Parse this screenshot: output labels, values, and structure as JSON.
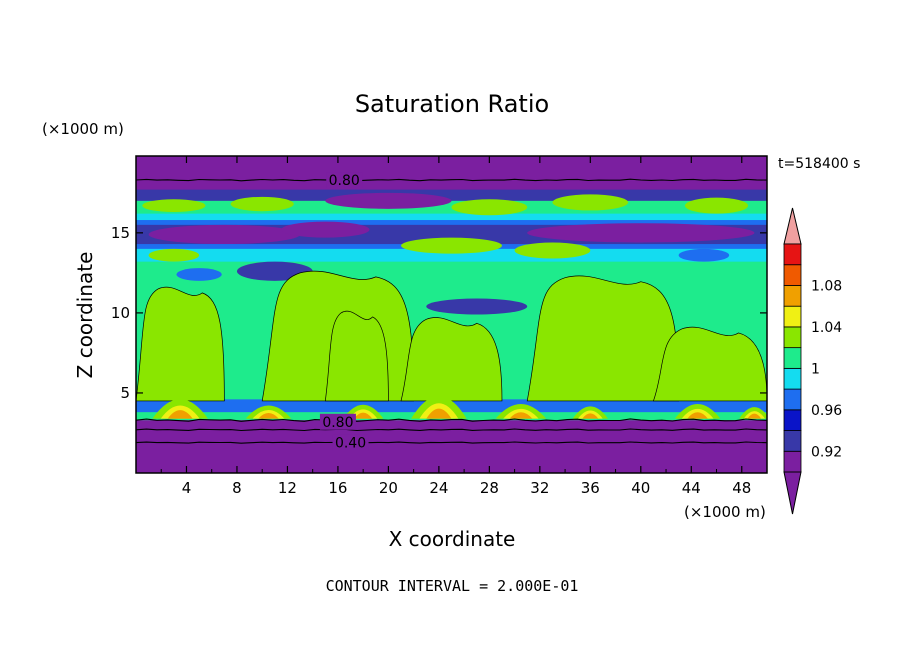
{
  "chart_data": {
    "type": "heatmap",
    "title": "Saturation Ratio",
    "xlabel": "X coordinate",
    "ylabel": "Z coordinate",
    "x_unit": "(×1000 m)",
    "y_unit": "(×1000 m)",
    "time_label": "t=518400 s",
    "footer": "CONTOUR INTERVAL = 2.000E-01",
    "xlim": [
      0,
      50
    ],
    "ylim": [
      0,
      19.8
    ],
    "x_ticks": [
      "4",
      "8",
      "12",
      "16",
      "20",
      "24",
      "28",
      "32",
      "36",
      "40",
      "44",
      "48"
    ],
    "y_ticks": [
      "5",
      "10",
      "15"
    ],
    "colorbar": {
      "labels": [
        "0.92",
        "0.96",
        "1",
        "1.04",
        "1.08"
      ],
      "levels": [
        0.9,
        0.92,
        0.94,
        0.96,
        0.98,
        1.0,
        1.02,
        1.04,
        1.06,
        1.08,
        1.1
      ],
      "colors": [
        "#7b1fa0",
        "#3838a8",
        "#0a14c8",
        "#1e6ef0",
        "#14dcf0",
        "#1eeb8c",
        "#8ae600",
        "#f0f014",
        "#f0a000",
        "#f05a00",
        "#e61414"
      ],
      "over_color": "#f0a0a0",
      "under_color": "#7b1fa0",
      "extend": "both"
    },
    "contour_labels": [
      {
        "text": "0.80",
        "x": 16.5,
        "z": 18.3
      },
      {
        "text": "0.80",
        "x": 16.0,
        "z": 3.2
      },
      {
        "text": "0.40",
        "x": 17.0,
        "z": 1.9
      }
    ],
    "regions": {
      "upper_band": {
        "z_range": [
          17.8,
          19.8
        ],
        "value_range": "< 0.90"
      },
      "lower_band": {
        "z_range": [
          0,
          3.3
        ],
        "value_range": "< 0.90"
      },
      "dry_band_z15": {
        "z_range": [
          13.5,
          16.0
        ],
        "value_range": "< 0.96"
      },
      "mid_troposphere": {
        "z_range": [
          4.5,
          13.5
        ],
        "value_range": "0.98 - 1.02"
      },
      "boundary_layer_peaks": {
        "z_range": [
          3.5,
          5.0
        ],
        "value_range": "1.02 - 1.08"
      }
    }
  }
}
